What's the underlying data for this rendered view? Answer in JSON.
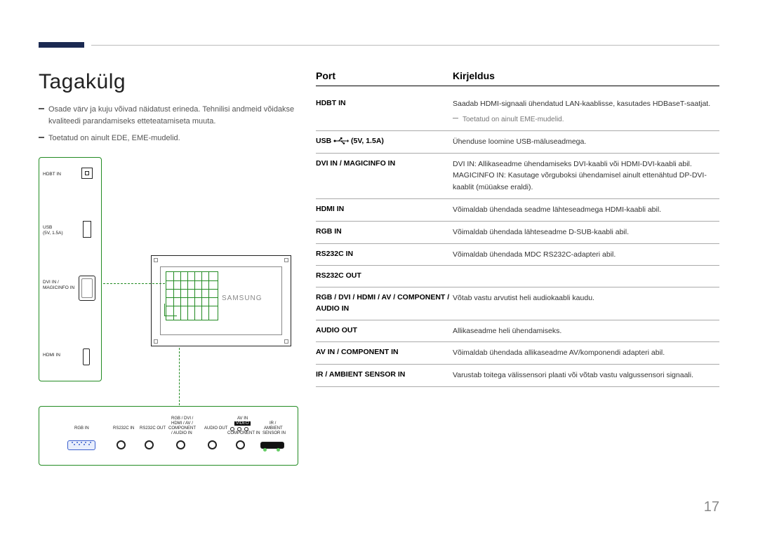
{
  "accent_color": "#1b2a52",
  "diagram_stroke": "#228B22",
  "title": "Tagakülg",
  "left_notes": [
    "Osade värv ja kuju võivad näidatust erineda. Tehnilisi andmeid võidakse kvaliteedi parandamiseks etteteatamiseta muuta.",
    "Toetatud on ainult EDE, EME-mudelid."
  ],
  "brand": "SAMSUNG",
  "side_port_labels": {
    "hdbt": "HDBT IN",
    "usb1": "USB",
    "usb2": "(5V, 1.5A)",
    "dvi1": "DVI IN /",
    "dvi2": "MAGICINFO IN",
    "hdmi": "HDMI IN"
  },
  "bottom_port_labels": {
    "rgb": "RGB IN",
    "rs1": "RS232C IN",
    "rs2": "RS232C OUT",
    "comp1": "RGB / DVI /",
    "comp2": "HDMI / AV /",
    "comp3": "COMPONENT",
    "comp4": "/ AUDIO IN",
    "aout": "AUDIO OUT",
    "avin": "AV IN",
    "video": "VIDEO",
    "compin": "COMPONENT IN",
    "ir1": "IR /",
    "ir2": "AMBIENT",
    "ir3": "SENSOR IN"
  },
  "table": {
    "header": {
      "port": "Port",
      "desc": "Kirjeldus"
    },
    "rows": [
      {
        "port": "HDBT IN",
        "desc": "Saadab HDMI-signaali ühendatud LAN-kaablisse, kasutades HDBaseT-saatjat.",
        "note": "Toetatud on ainult EME-mudelid."
      },
      {
        "port": "USB __USB__ (5V, 1.5A)",
        "desc": "Ühenduse loomine USB-mäluseadmega."
      },
      {
        "port": "DVI IN / MAGICINFO IN",
        "desc": "DVI IN: Allikaseadme ühendamiseks DVI-kaabli või HDMI-DVI-kaabli abil.\nMAGICINFO IN: Kasutage võrguboksi ühendamisel ainult ettenähtud DP-DVI-kaablit (müüakse eraldi)."
      },
      {
        "port": "HDMI IN",
        "desc": "Võimaldab ühendada seadme lähteseadmega HDMI-kaabli abil."
      },
      {
        "port": "RGB IN",
        "desc": "Võimaldab ühendada lähteseadme D-SUB-kaabli abil."
      },
      {
        "port": "RS232C IN",
        "desc": "Võimaldab ühendada MDC RS232C-adapteri abil."
      },
      {
        "port": "RS232C OUT",
        "desc": ""
      },
      {
        "port": "RGB / DVI / HDMI / AV / COMPONENT / AUDIO IN",
        "desc": "Võtab vastu arvutist heli audiokaabli kaudu."
      },
      {
        "port": "AUDIO OUT",
        "desc": "Allikaseadme heli ühendamiseks."
      },
      {
        "port": "AV IN / COMPONENT IN",
        "desc": "Võimaldab ühendada allikaseadme AV/komponendi adapteri abil."
      },
      {
        "port": "IR / AMBIENT SENSOR IN",
        "desc": "Varustab toitega välissensori plaati või võtab vastu valgussensori signaali."
      }
    ]
  },
  "page_number": "17"
}
